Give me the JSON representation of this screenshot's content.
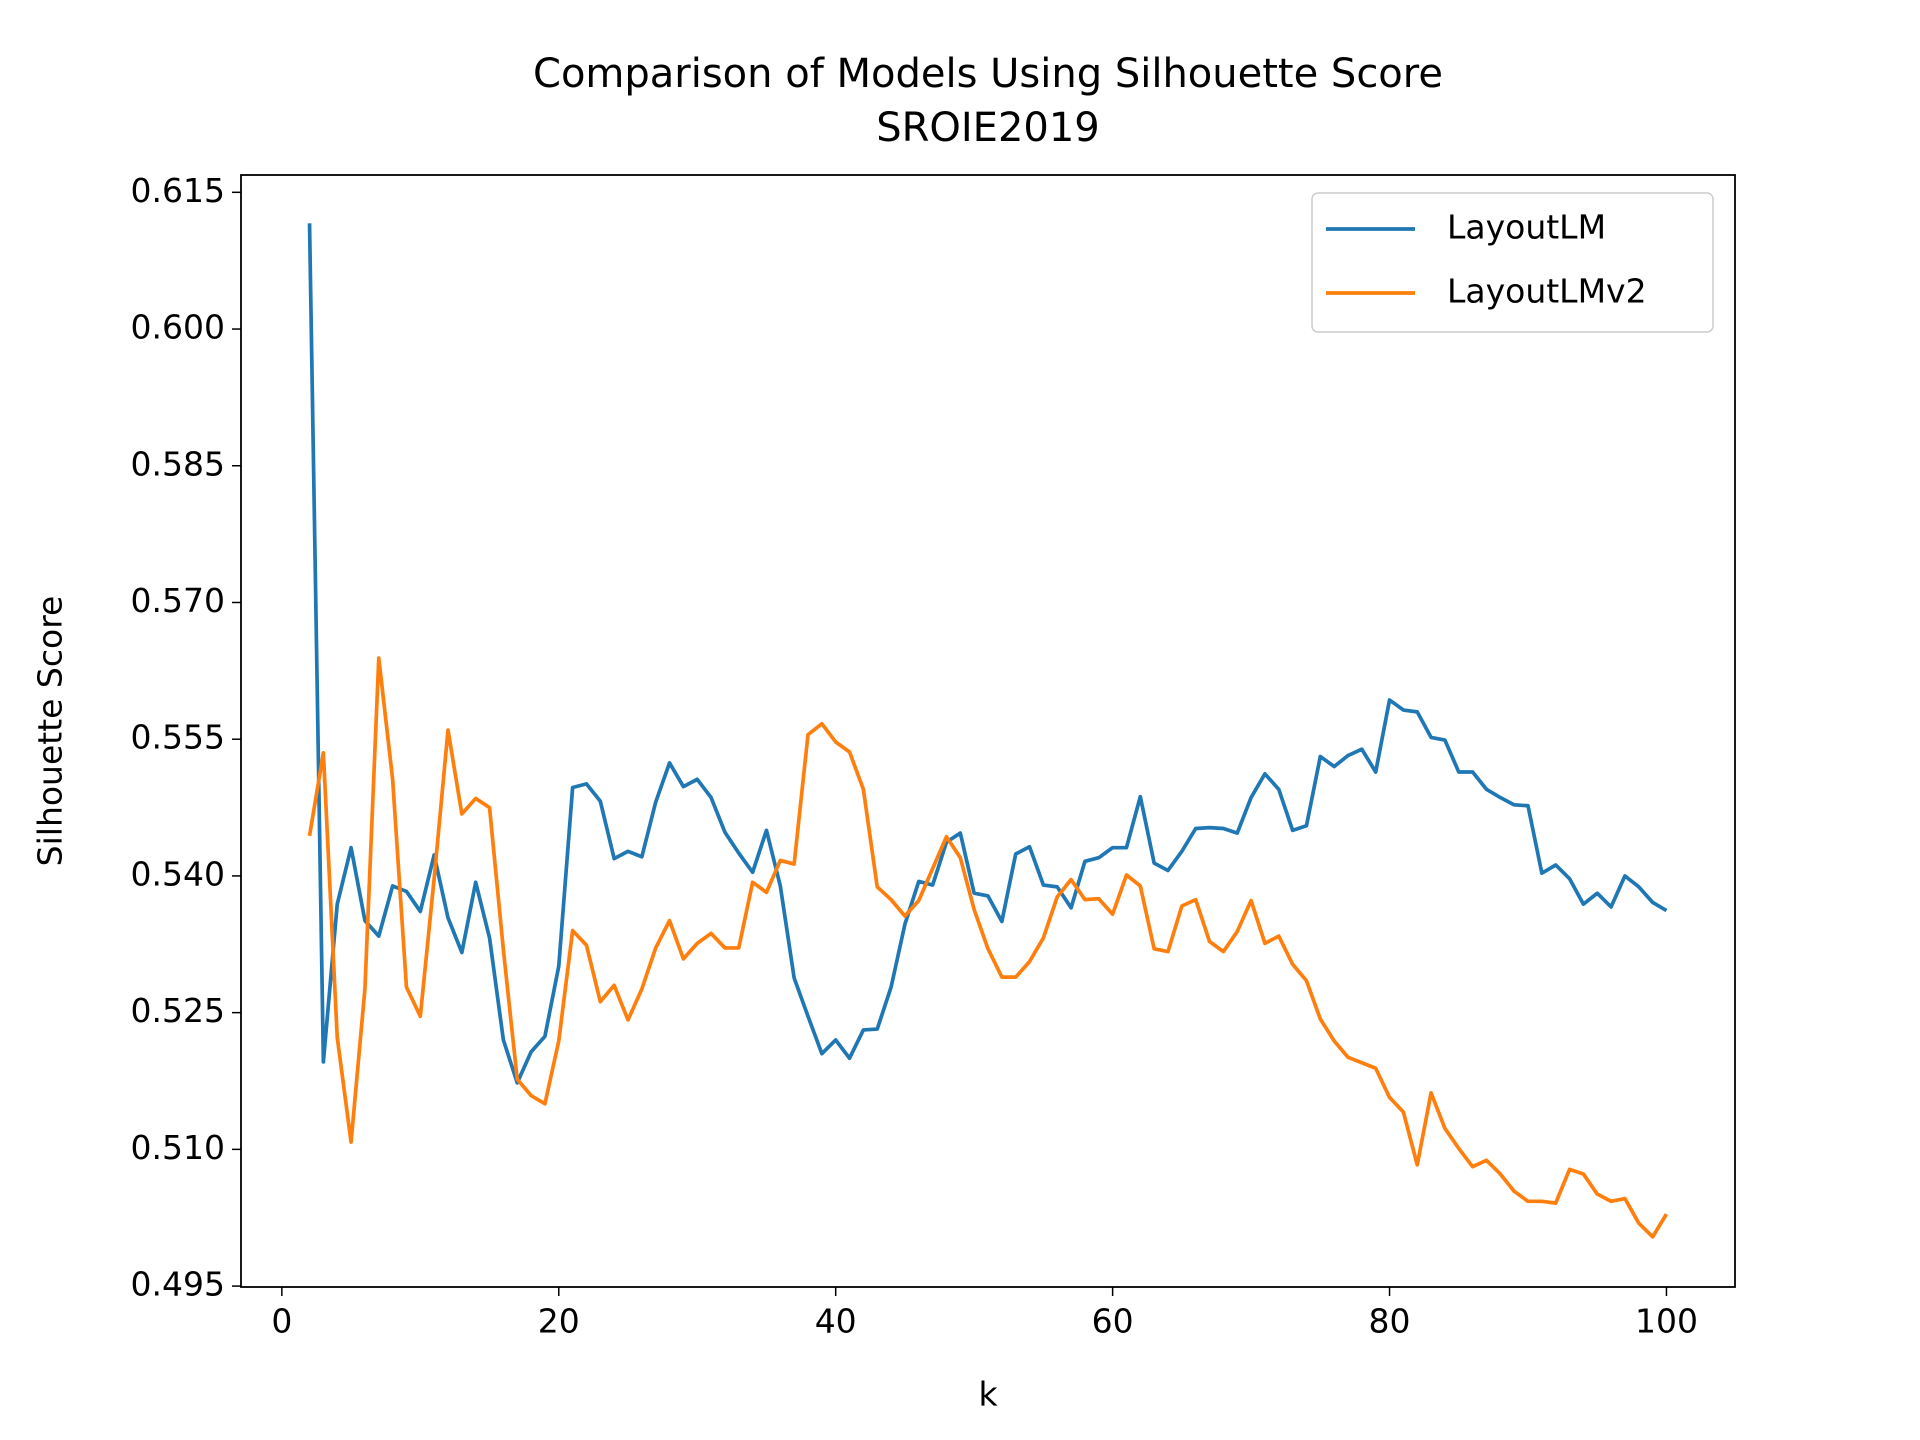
{
  "chart_data": {
    "type": "line",
    "title": "Comparison of Models Using Silhouette Score",
    "subtitle": "SROIE2019",
    "x_label": "k",
    "y_label": "Silhouette Score",
    "x": [
      2,
      3,
      4,
      5,
      6,
      7,
      8,
      9,
      10,
      11,
      12,
      13,
      14,
      15,
      16,
      17,
      18,
      19,
      20,
      21,
      22,
      23,
      24,
      25,
      26,
      27,
      28,
      29,
      30,
      31,
      32,
      33,
      34,
      35,
      36,
      37,
      38,
      39,
      40,
      41,
      42,
      43,
      44,
      45,
      46,
      47,
      48,
      49,
      50,
      51,
      52,
      53,
      54,
      55,
      56,
      57,
      58,
      59,
      60,
      61,
      62,
      63,
      64,
      65,
      66,
      67,
      68,
      69,
      70,
      71,
      72,
      73,
      74,
      75,
      76,
      77,
      78,
      79,
      80,
      81,
      82,
      83,
      84,
      85,
      86,
      87,
      88,
      89,
      90,
      91,
      92,
      93,
      94,
      95,
      96,
      97,
      98,
      99,
      100
    ],
    "series": [
      {
        "name": "LayoutLM",
        "color": "#1f77b4",
        "values": [
          0.6116,
          0.5196,
          0.5369,
          0.5431,
          0.5351,
          0.5334,
          0.5389,
          0.5383,
          0.5361,
          0.5423,
          0.5354,
          0.5316,
          0.5393,
          0.5332,
          0.522,
          0.5173,
          0.5207,
          0.5224,
          0.5301,
          0.5497,
          0.5501,
          0.5482,
          0.5419,
          0.5427,
          0.5421,
          0.5481,
          0.5524,
          0.5498,
          0.5506,
          0.5486,
          0.5448,
          0.5425,
          0.5404,
          0.545,
          0.5389,
          0.5288,
          0.5246,
          0.5205,
          0.522,
          0.52,
          0.5231,
          0.5232,
          0.5278,
          0.5347,
          0.5394,
          0.539,
          0.5437,
          0.5447,
          0.5381,
          0.5378,
          0.535,
          0.5424,
          0.5432,
          0.539,
          0.5388,
          0.5365,
          0.5416,
          0.542,
          0.5431,
          0.5431,
          0.5487,
          0.5414,
          0.5406,
          0.5427,
          0.5452,
          0.5453,
          0.5452,
          0.5447,
          0.5486,
          0.5512,
          0.5495,
          0.545,
          0.5455,
          0.5531,
          0.552,
          0.5532,
          0.5539,
          0.5514,
          0.5593,
          0.5582,
          0.558,
          0.5552,
          0.5549,
          0.5514,
          0.5514,
          0.5495,
          0.5486,
          0.5478,
          0.5477,
          0.5403,
          0.5412,
          0.5397,
          0.5369,
          0.5381,
          0.5366,
          0.54,
          0.5388,
          0.5371,
          0.5362
        ]
      },
      {
        "name": "LayoutLMv2",
        "color": "#ff7f0e",
        "values": [
          0.5444,
          0.5535,
          0.5223,
          0.5108,
          0.5276,
          0.5639,
          0.5506,
          0.5278,
          0.5246,
          0.5397,
          0.556,
          0.5468,
          0.5485,
          0.5475,
          0.5319,
          0.5177,
          0.5159,
          0.515,
          0.5219,
          0.534,
          0.5324,
          0.5262,
          0.528,
          0.5242,
          0.5276,
          0.5321,
          0.5351,
          0.5309,
          0.5326,
          0.5337,
          0.5321,
          0.5321,
          0.5393,
          0.5382,
          0.5417,
          0.5413,
          0.5555,
          0.5567,
          0.5547,
          0.5536,
          0.5495,
          0.5388,
          0.5374,
          0.5356,
          0.5373,
          0.5408,
          0.5443,
          0.542,
          0.5363,
          0.532,
          0.5289,
          0.5289,
          0.5306,
          0.5332,
          0.5377,
          0.5396,
          0.5374,
          0.5375,
          0.5358,
          0.5401,
          0.5389,
          0.532,
          0.5317,
          0.5367,
          0.5374,
          0.5328,
          0.5317,
          0.5339,
          0.5373,
          0.5326,
          0.5334,
          0.5303,
          0.5285,
          0.5243,
          0.5219,
          0.5201,
          0.5195,
          0.5189,
          0.5157,
          0.5141,
          0.5083,
          0.5162,
          0.5123,
          0.5101,
          0.5081,
          0.5088,
          0.5073,
          0.5054,
          0.5043,
          0.5043,
          0.5041,
          0.5078,
          0.5073,
          0.5051,
          0.5043,
          0.5046,
          0.5019,
          0.5004,
          0.5029
        ]
      }
    ],
    "xlim": [
      -2.95,
      104.95
    ],
    "ylim": [
      0.4949,
      0.6169
    ],
    "xticks": [
      0,
      20,
      40,
      60,
      80,
      100
    ],
    "yticks": [
      0.495,
      {
        "value": 0.51,
        "label": "0.510"
      },
      0.525,
      {
        "value": 0.54,
        "label": "0.540"
      },
      0.555,
      {
        "value": 0.57,
        "label": "0.570"
      },
      0.585,
      {
        "value": 0.6,
        "label": "0.600"
      },
      0.615
    ],
    "grid": false,
    "legend": "upper right"
  }
}
